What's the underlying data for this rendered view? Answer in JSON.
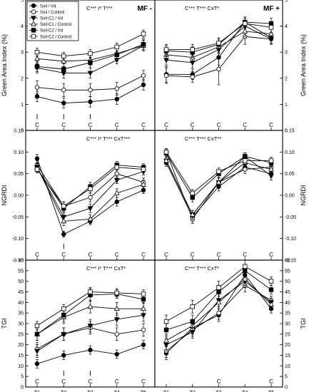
{
  "chart_data": {
    "type": "line",
    "x": [
      "T1",
      "T2",
      "T3",
      "T4",
      "T5"
    ],
    "legend": {
      "placement": "top-left",
      "entries": [
        {
          "label": "Soil / Vd",
          "marker": "filled-circle"
        },
        {
          "label": "Soil / Control",
          "marker": "open-circle"
        },
        {
          "label": "Soil-C1 / Vd",
          "marker": "filled-triangle-down"
        },
        {
          "label": "Soil-C1 / Control",
          "marker": "open-triangle-up"
        },
        {
          "label": "Soil-C2 / Vd",
          "marker": "filled-square"
        },
        {
          "label": "Soil-C2 / Control",
          "marker": "open-square"
        }
      ]
    },
    "column_titles": [
      "MF -",
      "MF +"
    ],
    "rows": [
      {
        "ylabel": "Green Area Index (%)",
        "ylim": [
          0,
          5
        ],
        "ticks": [
          0,
          1,
          2,
          3,
          4,
          5
        ],
        "tick_labels": [
          "0",
          "1",
          "2",
          "3",
          "4",
          "5"
        ]
      },
      {
        "ylabel": "NGRDI",
        "ylim": [
          -0.15,
          0.15
        ],
        "ticks": [
          -0.15,
          -0.1,
          -0.05,
          0.0,
          0.05,
          0.1,
          0.15
        ],
        "tick_labels": [
          "-0.15",
          "-0.10",
          "-0.05",
          "0.00",
          "0.05",
          "0.10",
          "0.15"
        ]
      },
      {
        "ylabel": "TGI",
        "ylim": [
          0,
          60
        ],
        "ticks": [
          0,
          5,
          10,
          15,
          20,
          25,
          30,
          35,
          40,
          45,
          50,
          55,
          60
        ],
        "tick_labels": [
          "0",
          "5",
          "10",
          "15",
          "20",
          "25",
          "30",
          "35",
          "40",
          "45",
          "50",
          "55",
          "60"
        ]
      }
    ],
    "panels": [
      {
        "row": 0,
        "col": 0,
        "stats": "C*** I* T***",
        "title": "MF -",
        "letters": [
          "C",
          "C",
          "C",
          "C",
          "C"
        ],
        "bars": [
          0,
          1,
          2
        ],
        "series": [
          {
            "values": [
              1.3,
              1.05,
              1.1,
              1.2,
              1.75
            ],
            "err": [
              0.2,
              0.2,
              0.2,
              0.2,
              0.2
            ]
          },
          {
            "values": [
              1.65,
              1.55,
              1.55,
              1.6,
              2.1
            ],
            "err": [
              0.25,
              0.25,
              0.25,
              0.25,
              0.2
            ]
          },
          {
            "values": [
              2.4,
              2.2,
              2.2,
              2.7,
              3.25
            ],
            "err": [
              0.2,
              0.2,
              0.2,
              0.15,
              0.2
            ]
          },
          {
            "values": [
              2.75,
              2.65,
              2.7,
              2.95,
              3.25
            ],
            "err": [
              0.2,
              0.2,
              0.2,
              0.2,
              0.2
            ]
          },
          {
            "values": [
              2.45,
              2.35,
              2.6,
              2.9,
              3.3
            ],
            "err": [
              0.2,
              0.2,
              0.2,
              0.15,
              0.2
            ]
          },
          {
            "values": [
              3.0,
              2.85,
              2.95,
              3.2,
              3.7
            ],
            "err": [
              0.15,
              0.15,
              0.15,
              0.15,
              0.15
            ]
          }
        ]
      },
      {
        "row": 0,
        "col": 1,
        "stats": "C*** T*** CxT*",
        "title": "MF +",
        "letters": [
          "C",
          "C",
          "C",
          "C",
          "C"
        ],
        "bars": [],
        "series": [
          {
            "values": [
              2.15,
              2.15,
              2.8,
              4.15,
              3.55
            ],
            "err": [
              0.3,
              0.2,
              0.3,
              0.2,
              0.2
            ]
          },
          {
            "values": [
              2.1,
              2.05,
              2.35,
              3.6,
              3.5
            ],
            "err": [
              0.3,
              0.2,
              0.6,
              0.3,
              0.2
            ]
          },
          {
            "values": [
              2.7,
              2.6,
              3.1,
              4.0,
              3.5
            ],
            "err": [
              0.2,
              0.2,
              0.3,
              0.2,
              0.2
            ]
          },
          {
            "values": [
              2.9,
              2.8,
              3.2,
              3.8,
              3.7
            ],
            "err": [
              0.2,
              0.2,
              0.2,
              0.2,
              0.2
            ]
          },
          {
            "values": [
              3.05,
              3.0,
              3.3,
              4.15,
              4.1
            ],
            "err": [
              0.2,
              0.2,
              0.2,
              0.15,
              0.2
            ]
          },
          {
            "values": [
              3.1,
              3.1,
              3.35,
              4.1,
              3.95
            ],
            "err": [
              0.2,
              0.2,
              0.2,
              0.2,
              0.2
            ]
          }
        ]
      },
      {
        "row": 1,
        "col": 0,
        "stats": "C*** I* T*** CxT***",
        "title": "",
        "letters": [
          "C",
          "C",
          "C",
          "C",
          "C"
        ],
        "bars": [
          1
        ],
        "series": [
          {
            "values": [
              0.085,
              -0.09,
              -0.06,
              -0.015,
              0.012
            ],
            "err": [
              0.01,
              0.007,
              0.008,
              0.01,
              0.008
            ]
          },
          {
            "values": [
              0.07,
              -0.025,
              -0.005,
              0.05,
              0.03
            ],
            "err": [
              0.01,
              0.01,
              0.01,
              0.01,
              0.01
            ]
          },
          {
            "values": [
              0.065,
              -0.05,
              -0.03,
              0.035,
              0.055
            ],
            "err": [
              0.008,
              0.01,
              0.01,
              0.008,
              0.008
            ]
          },
          {
            "values": [
              0.065,
              -0.06,
              -0.055,
              0.005,
              0.025
            ],
            "err": [
              0.01,
              0.01,
              0.01,
              0.01,
              0.01
            ]
          },
          {
            "values": [
              0.062,
              -0.03,
              0.02,
              0.07,
              0.065
            ],
            "err": [
              0.008,
              0.008,
              0.01,
              0.008,
              0.008
            ]
          },
          {
            "values": [
              0.06,
              -0.025,
              0.015,
              0.065,
              0.06
            ],
            "err": [
              0.008,
              0.01,
              0.01,
              0.008,
              0.008
            ]
          }
        ]
      },
      {
        "row": 1,
        "col": 1,
        "stats": "C*** T*** CxT**",
        "title": "",
        "letters": [
          "C",
          "C",
          "C",
          "C",
          "C"
        ],
        "bars": [],
        "series": [
          {
            "values": [
              0.075,
              -0.05,
              0.02,
              0.065,
              0.05
            ],
            "err": [
              0.008,
              0.01,
              0.01,
              0.008,
              0.008
            ]
          },
          {
            "values": [
              0.1,
              -0.055,
              0.03,
              0.06,
              0.065
            ],
            "err": [
              0.008,
              0.01,
              0.01,
              0.01,
              0.008
            ]
          },
          {
            "values": [
              0.08,
              -0.045,
              0.03,
              0.09,
              0.045
            ],
            "err": [
              0.008,
              0.01,
              0.01,
              0.008,
              0.01
            ]
          },
          {
            "values": [
              0.08,
              -0.045,
              0.03,
              0.075,
              0.06
            ],
            "err": [
              0.008,
              0.01,
              0.01,
              0.01,
              0.008
            ]
          },
          {
            "values": [
              0.097,
              -0.005,
              0.05,
              0.09,
              0.075
            ],
            "err": [
              0.008,
              0.01,
              0.008,
              0.008,
              0.008
            ]
          },
          {
            "values": [
              0.1,
              0.005,
              0.055,
              0.08,
              0.08
            ],
            "err": [
              0.008,
              0.008,
              0.008,
              0.008,
              0.008
            ]
          }
        ]
      },
      {
        "row": 2,
        "col": 0,
        "stats": "C*** I* T*** CxT*",
        "title": "",
        "letters": [
          "C",
          "C",
          "C",
          "C",
          "C"
        ],
        "bars": [
          1,
          2
        ],
        "series": [
          {
            "values": [
              11,
              15,
              17.5,
              15.5,
              20
            ],
            "err": [
              2,
              2,
              2,
              2,
              2
            ]
          },
          {
            "values": [
              18,
              25,
              28,
              25,
              27
            ],
            "err": [
              3,
              3,
              3,
              3,
              3
            ]
          },
          {
            "values": [
              17,
              25,
              29,
              32,
              34
            ],
            "err": [
              3,
              3,
              3,
              3,
              3
            ]
          },
          {
            "values": [
              25,
              33,
              38,
              37,
              37
            ],
            "err": [
              3,
              3,
              3,
              3,
              3
            ]
          },
          {
            "values": [
              25,
              34,
              43.5,
              44,
              41.5
            ],
            "err": [
              3,
              3,
              3,
              2,
              2
            ]
          },
          {
            "values": [
              29,
              37,
              45,
              44.5,
              44
            ],
            "err": [
              2,
              2,
              2,
              2,
              2
            ]
          }
        ]
      },
      {
        "row": 2,
        "col": 1,
        "stats": "C*** T*** CxT*",
        "title": "",
        "letters": [
          "",
          "",
          "C",
          "",
          "C"
        ],
        "bars": [],
        "series": [
          {
            "values": [
              16,
              28,
              34,
              53,
              37
            ],
            "err": [
              3,
              3,
              3,
              3,
              2
            ]
          },
          {
            "values": [
              17,
              27,
              35,
              48,
              41
            ],
            "err": [
              3,
              3,
              3,
              3,
              2
            ]
          },
          {
            "values": [
              20,
              26,
              41,
              50,
              40
            ],
            "err": [
              3,
              3,
              3,
              3,
              2
            ]
          },
          {
            "values": [
              22,
              29,
              40,
              51,
              39
            ],
            "err": [
              3,
              3,
              3,
              3,
              2
            ]
          },
          {
            "values": [
              27,
              31,
              45,
              55,
              46
            ],
            "err": [
              3,
              3,
              3,
              3,
              2
            ]
          },
          {
            "values": [
              31,
              38,
              47,
              57,
              50
            ],
            "err": [
              3,
              3,
              3,
              3,
              2
            ]
          }
        ]
      }
    ]
  }
}
